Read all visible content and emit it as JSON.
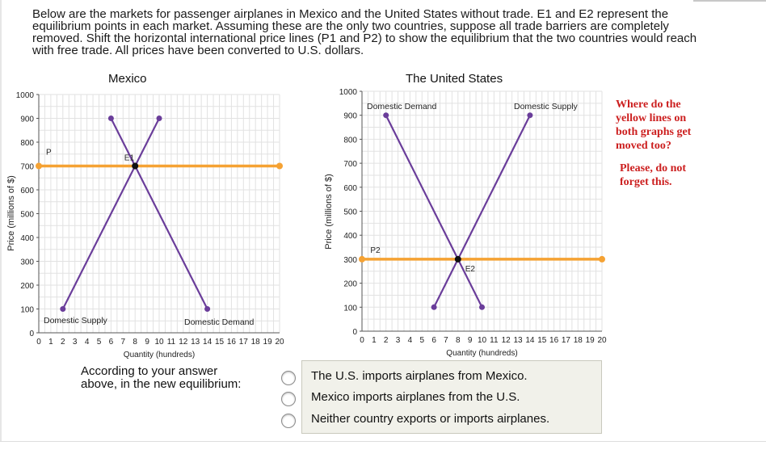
{
  "instructions": "Below are the markets for passenger airplanes in Mexico and the United States without trade. E1 and E2 represent the equilibrium points in each market. Assuming these are the only two countries, suppose all trade barriers are completely removed. Shift the horizontal international price lines (P1 and P2) to show the equilibrium that the two countries would reach with free trade. All prices have been converted to U.S. dollars.",
  "colors": {
    "line": "#6a3d9a",
    "price": "#f5a233",
    "grid": "#e2e2e2",
    "axis": "#555555",
    "note": "#cc1f1f",
    "answerBg": "#f1f1ea"
  },
  "chart_data": [
    {
      "type": "line",
      "title": "Mexico",
      "xlabel": "Quantity (hundreds)",
      "ylabel": "Price (millions of $)",
      "xlim": [
        0,
        20
      ],
      "ylim": [
        0,
        1000
      ],
      "xticks": [
        0,
        1,
        2,
        3,
        4,
        5,
        6,
        7,
        8,
        9,
        10,
        11,
        12,
        13,
        14,
        15,
        16,
        17,
        18,
        19,
        20
      ],
      "yticks": [
        0,
        100,
        200,
        300,
        400,
        500,
        600,
        700,
        800,
        900,
        1000
      ],
      "grid": true,
      "series": [
        {
          "name": "Domestic Supply",
          "x": [
            2,
            10
          ],
          "y": [
            100,
            900
          ]
        },
        {
          "name": "Domestic Demand",
          "x": [
            6,
            14
          ],
          "y": [
            900,
            100
          ]
        },
        {
          "name": "P",
          "x": [
            0,
            20
          ],
          "y": [
            700,
            700
          ]
        }
      ],
      "equilibrium": {
        "label": "E1",
        "x": 8,
        "y": 700
      }
    },
    {
      "type": "line",
      "title": "The United States",
      "xlabel": "Quantity (hundreds)",
      "ylabel": "Price (millions of $)",
      "xlim": [
        0,
        20
      ],
      "ylim": [
        0,
        1000
      ],
      "xticks": [
        0,
        1,
        2,
        3,
        4,
        5,
        6,
        7,
        8,
        9,
        10,
        11,
        12,
        13,
        14,
        15,
        16,
        17,
        18,
        19,
        20
      ],
      "yticks": [
        0,
        100,
        200,
        300,
        400,
        500,
        600,
        700,
        800,
        900,
        1000
      ],
      "grid": true,
      "series": [
        {
          "name": "Domestic Demand",
          "x": [
            2,
            10
          ],
          "y": [
            900,
            100
          ]
        },
        {
          "name": "Domestic Supply",
          "x": [
            6,
            14
          ],
          "y": [
            100,
            900
          ]
        },
        {
          "name": "P2",
          "x": [
            0,
            20
          ],
          "y": [
            300,
            300
          ]
        }
      ],
      "equilibrium": {
        "label": "E2",
        "x": 8,
        "y": 300
      }
    }
  ],
  "note": {
    "line1": "Where do the",
    "line2": "yellow lines on",
    "line3": "both graphs get",
    "line4": "moved too?",
    "line5": "Please, do not",
    "line6": "forget this."
  },
  "question": {
    "line1": "According to your answer",
    "line2": "above, in the new equilibrium:"
  },
  "answers": [
    "The U.S. imports airplanes from Mexico.",
    "Mexico imports airplanes from the U.S.",
    "Neither country exports or imports airplanes."
  ]
}
